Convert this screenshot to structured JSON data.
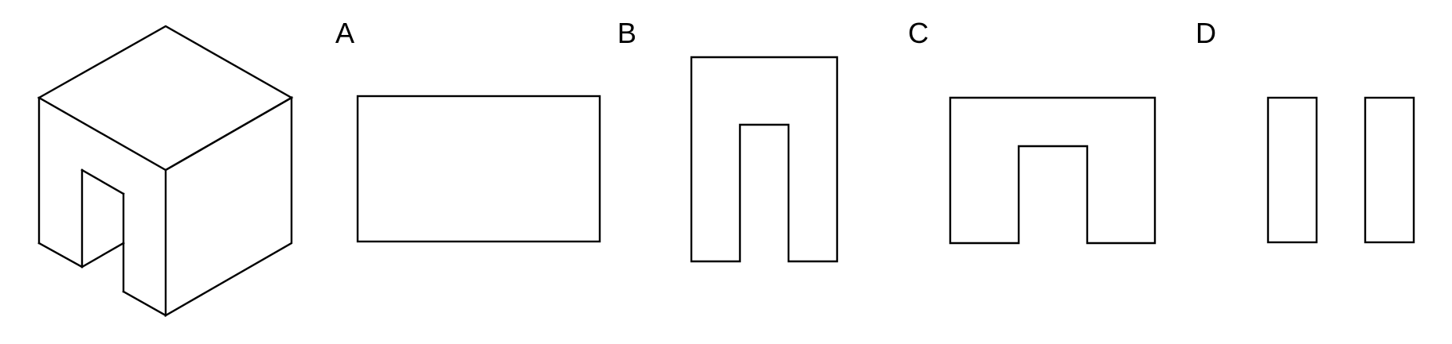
{
  "options": [
    {
      "label": "A"
    },
    {
      "label": "B"
    },
    {
      "label": "C"
    },
    {
      "label": "D"
    }
  ]
}
